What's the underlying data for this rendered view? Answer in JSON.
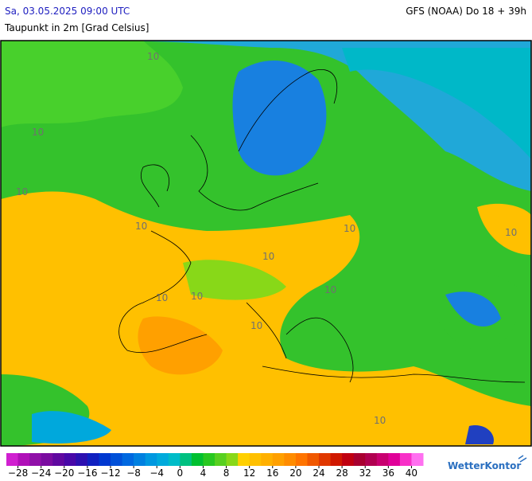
{
  "header": {
    "datetime": "Sa, 03.05.2025 09:00 UTC",
    "model": "GFS (NOAA) Do 18 + 39h",
    "subtitle": "Taupunkt in 2m [Grad Celsius]"
  },
  "map_labels": [
    "10",
    "10",
    "10",
    "10",
    "10",
    "10",
    "10",
    "10",
    "10",
    "10",
    "10",
    "10"
  ],
  "colorbar": {
    "lim": [
      -30,
      42
    ],
    "colors": [
      "#d020d0",
      "#b010b8",
      "#9010a8",
      "#7a0ca0",
      "#6008a0",
      "#4808a8",
      "#2c10b0",
      "#1020c0",
      "#0038d0",
      "#0050d8",
      "#0068e0",
      "#0080e0",
      "#0098e0",
      "#00aadc",
      "#00bcc8",
      "#00c080",
      "#00c030",
      "#28c820",
      "#58d020",
      "#88d818",
      "#ffd000",
      "#ffc000",
      "#ffb000",
      "#ffa000",
      "#ff8c00",
      "#ff7400",
      "#f05800",
      "#e03800",
      "#d01800",
      "#c00010",
      "#a80030",
      "#b00050",
      "#c80070",
      "#e00098",
      "#f830c8",
      "#ff70f0"
    ],
    "ticks": [
      {
        "value": -28,
        "label": "−28"
      },
      {
        "value": -24,
        "label": "−24"
      },
      {
        "value": -20,
        "label": "−20"
      },
      {
        "value": -16,
        "label": "−16"
      },
      {
        "value": -12,
        "label": "−12"
      },
      {
        "value": -8,
        "label": "−8"
      },
      {
        "value": -4,
        "label": "−4"
      },
      0,
      4,
      8,
      12,
      16,
      20,
      24,
      28,
      32,
      36,
      40
    ]
  },
  "logo": "WetterKontor"
}
